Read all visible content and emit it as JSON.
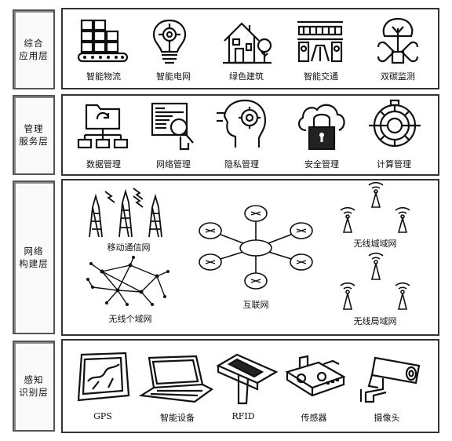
{
  "layers": [
    {
      "label": "综合\n应用层",
      "items": [
        {
          "label": "智能物流",
          "icon": "logistics-icon"
        },
        {
          "label": "智能电网",
          "icon": "lightbulb-grid-icon"
        },
        {
          "label": "绿色建筑",
          "icon": "green-building-icon"
        },
        {
          "label": "智能交通",
          "icon": "train-transport-icon"
        },
        {
          "label": "双碳监测",
          "icon": "carbon-tree-wrench-icon"
        }
      ]
    },
    {
      "label": "管理\n服务层",
      "items": [
        {
          "label": "数据管理",
          "icon": "data-folder-icon"
        },
        {
          "label": "网络管理",
          "icon": "network-search-icon"
        },
        {
          "label": "隐私管理",
          "icon": "privacy-head-icon"
        },
        {
          "label": "安全管理",
          "icon": "cloud-lock-icon"
        },
        {
          "label": "计算管理",
          "icon": "computing-gear-icon"
        }
      ]
    },
    {
      "label": "网络\n构建层",
      "items": [
        {
          "label": "移动通信网",
          "icon": "cell-towers-icon"
        },
        {
          "label": "无线个域网",
          "icon": "mesh-network-icon"
        },
        {
          "label": "互联网",
          "icon": "router-star-icon"
        },
        {
          "label": "无线城域网",
          "icon": "antenna-array-icon"
        },
        {
          "label": "无线局域网",
          "icon": "antenna-array-small-icon"
        }
      ]
    },
    {
      "label": "感知\n识别层",
      "items": [
        {
          "label": "GPS",
          "icon": "gps-device-icon"
        },
        {
          "label": "智能设备",
          "icon": "laptop-icon"
        },
        {
          "label": "RFID",
          "icon": "rfid-scanner-icon"
        },
        {
          "label": "传感器",
          "icon": "sensor-board-icon"
        },
        {
          "label": "摄像头",
          "icon": "security-camera-icon"
        }
      ]
    }
  ]
}
